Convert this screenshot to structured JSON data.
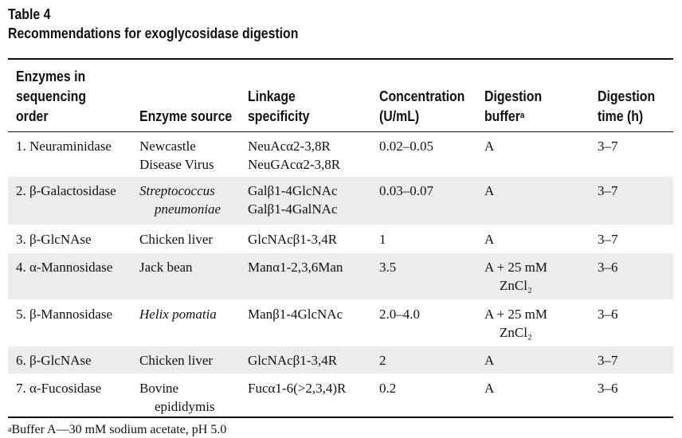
{
  "table": {
    "label": "Table 4",
    "caption": "Recommendations for exoglycosidase digestion",
    "headers": {
      "enzyme": [
        "Enzymes in",
        "sequencing",
        "order"
      ],
      "source": [
        "Enzyme source"
      ],
      "linkage": [
        "Linkage",
        "specificity"
      ],
      "concentration": [
        "Concentration",
        "(U/mL)"
      ],
      "buffer": [
        "Digestion",
        "buffer"
      ],
      "buffer_mark": "a",
      "time": [
        "Digestion",
        "time (h)"
      ]
    },
    "rows": [
      {
        "enzyme": "1. Neuraminidase",
        "source": [
          "Newcastle",
          "Disease Virus"
        ],
        "linkage": [
          "NeuAcα2-3,8R",
          "NeuGAcα2-3,8R"
        ],
        "concentration": "0.02–0.05",
        "buffer": [
          "A"
        ],
        "time": "3–7"
      },
      {
        "enzyme": "2. β-Galactosidase",
        "source": [
          "Streptococcus",
          "pneumoniae"
        ],
        "linkage": [
          "Galβ1-4GlcNAc",
          "Galβ1-4GalNAc"
        ],
        "concentration": "0.03–0.07",
        "buffer": [
          "A"
        ],
        "time": "3–7"
      },
      {
        "enzyme": "3. β-GlcNAse",
        "source": [
          "Chicken liver"
        ],
        "linkage": [
          "GlcNAcβ1-3,4R"
        ],
        "concentration": "1",
        "buffer": [
          "A"
        ],
        "time": "3–7"
      },
      {
        "enzyme": "4. α-Mannosidase",
        "source": [
          "Jack bean"
        ],
        "linkage": [
          "Manα1-2,3,6Man"
        ],
        "concentration": "3.5",
        "buffer": [
          "A + 25 mM",
          "ZnCl₂"
        ],
        "time": "3–6"
      },
      {
        "enzyme": "5. β-Mannosidase",
        "source": [
          "Helix pomatia"
        ],
        "linkage": [
          "Manβ1-4GlcNAc"
        ],
        "concentration": "2.0–4.0",
        "buffer": [
          "A + 25 mM",
          "ZnCl₂"
        ],
        "time": "3–6"
      },
      {
        "enzyme": "6. β-GlcNAse",
        "source": [
          "Chicken liver"
        ],
        "linkage": [
          "GlcNAcβ1-3,4R"
        ],
        "concentration": "2",
        "buffer": [
          "A"
        ],
        "time": "3–7"
      },
      {
        "enzyme": "7. α-Fucosidase",
        "source": [
          "Bovine",
          "epididymis"
        ],
        "linkage": [
          "Fucα1-6(>2,3,4)R"
        ],
        "concentration": "0.2",
        "buffer": [
          "A"
        ],
        "time": "3–6"
      }
    ],
    "footnote_mark": "a",
    "footnote": "Buffer A—30 mM sodium acetate, pH 5.0"
  }
}
